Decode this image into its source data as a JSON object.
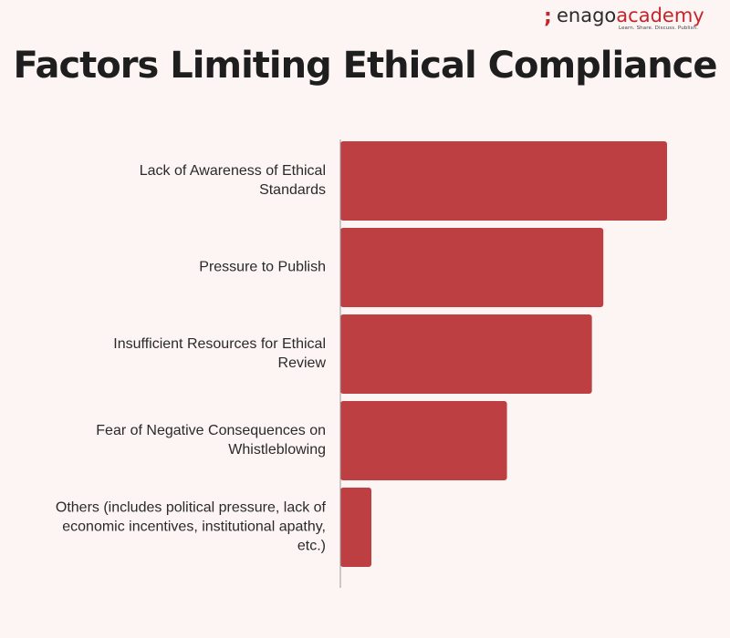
{
  "logo": {
    "mark": ";",
    "brand": "enago",
    "brand_accent": "academy",
    "tagline": "Learn. Share. Discuss. Publish."
  },
  "colors": {
    "background": "#fdf5f4",
    "bar": "#bd3f42",
    "axis": "#9a9a9a",
    "logo_accent": "#c4252a"
  },
  "chart_data": {
    "type": "bar",
    "orientation": "horizontal",
    "title": "Factors Limiting Ethical Compliance",
    "categories": [
      [
        "Lack of Awareness of Ethical",
        "Standards"
      ],
      [
        "Pressure to Publish"
      ],
      [
        "Insufficient Resources for Ethical",
        "Review"
      ],
      [
        "Fear of Negative Consequences on",
        "Whistleblowing"
      ],
      [
        "Others (includes political pressure, lack of",
        "economic incentives, institutional apathy,",
        "etc.)"
      ]
    ],
    "values": [
      100,
      80.5,
      77,
      51,
      9.5
    ],
    "xlim": [
      0,
      100
    ],
    "xlabel": "",
    "ylabel": "",
    "grid": false,
    "legend": "none",
    "data_labels": false
  }
}
